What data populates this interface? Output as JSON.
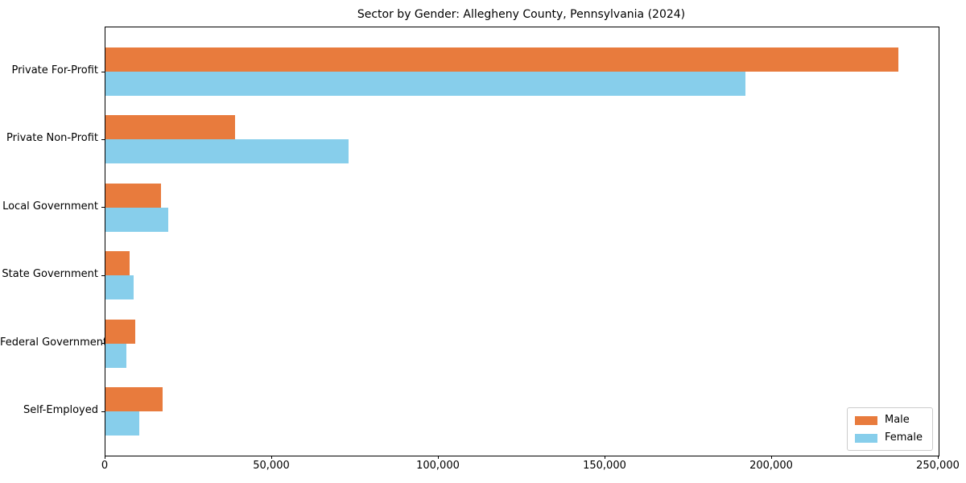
{
  "chart_data": {
    "type": "bar",
    "orientation": "horizontal",
    "title": "Sector by Gender: Allegheny County, Pennsylvania (2024)",
    "categories": [
      "Private For-Profit",
      "Private Non-Profit",
      "Local Government",
      "State Government",
      "Federal Government",
      "Self-Employed"
    ],
    "series": [
      {
        "name": "Male",
        "color": "#e87b3d",
        "values": [
          238000,
          39000,
          16700,
          7200,
          8900,
          17200
        ]
      },
      {
        "name": "Female",
        "color": "#87ceeb",
        "values": [
          192000,
          73000,
          18900,
          8400,
          6300,
          10100
        ]
      }
    ],
    "xlabel": "",
    "ylabel": "",
    "xlim": [
      0,
      250000
    ],
    "xticks": [
      0,
      50000,
      100000,
      150000,
      200000,
      250000
    ],
    "xtick_labels": [
      "0",
      "50,000",
      "100,000",
      "150,000",
      "200,000",
      "250,000"
    ],
    "grid": false,
    "legend": {
      "position": "lower right",
      "entries": [
        "Male",
        "Female"
      ]
    }
  },
  "colors": {
    "male": "#e87b3d",
    "female": "#87ceeb",
    "spine": "#000000",
    "background": "#ffffff",
    "legend_border": "#cccccc",
    "text": "#000000"
  }
}
